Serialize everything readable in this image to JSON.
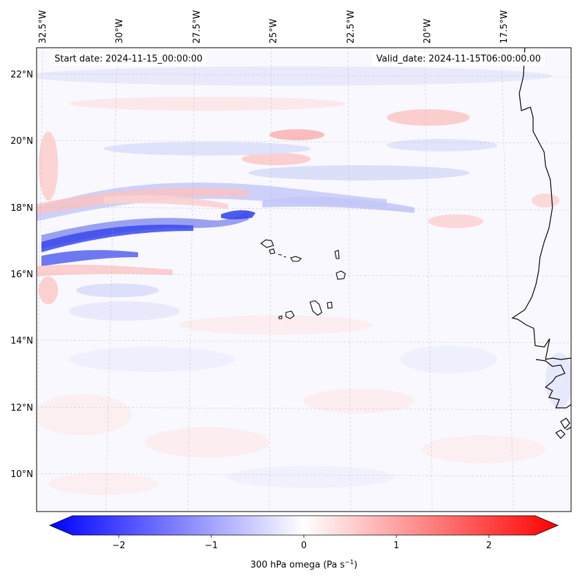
{
  "map": {
    "start_date_text": "Start date: 2024-11-15_00:00:00",
    "valid_date_text": "Valid_date: 2024-11-15T06:00:00.00",
    "lon_labels": [
      "32.5°W",
      "30°W",
      "27.5°W",
      "25°W",
      "22.5°W",
      "20°W",
      "17.5°W"
    ],
    "lat_labels": [
      "22°N",
      "20°N",
      "18°N",
      "16°N",
      "14°N",
      "12°N",
      "10°N"
    ],
    "extent": {
      "lon_min": -32.7,
      "lon_max": -15.0,
      "lat_min": 8.8,
      "lat_max": 22.8
    },
    "gridlines": true,
    "field": "300 hPa omega",
    "colormap": "bwr",
    "colors": {
      "negative": "#0000ff",
      "neutral": "#ffffff",
      "positive": "#ff0000",
      "coast": "#000000",
      "grid": "#b0b0b0"
    }
  },
  "colorbar": {
    "label": "300 hPa omega (Pa s",
    "label_sup": "−1",
    "label_close": ")",
    "ticks": [
      "−2",
      "−1",
      "0",
      "1",
      "2"
    ],
    "tick_values": [
      -2,
      -1,
      0,
      1,
      2
    ],
    "vmin": -2.5,
    "vmax": 2.5,
    "extend": "both"
  }
}
